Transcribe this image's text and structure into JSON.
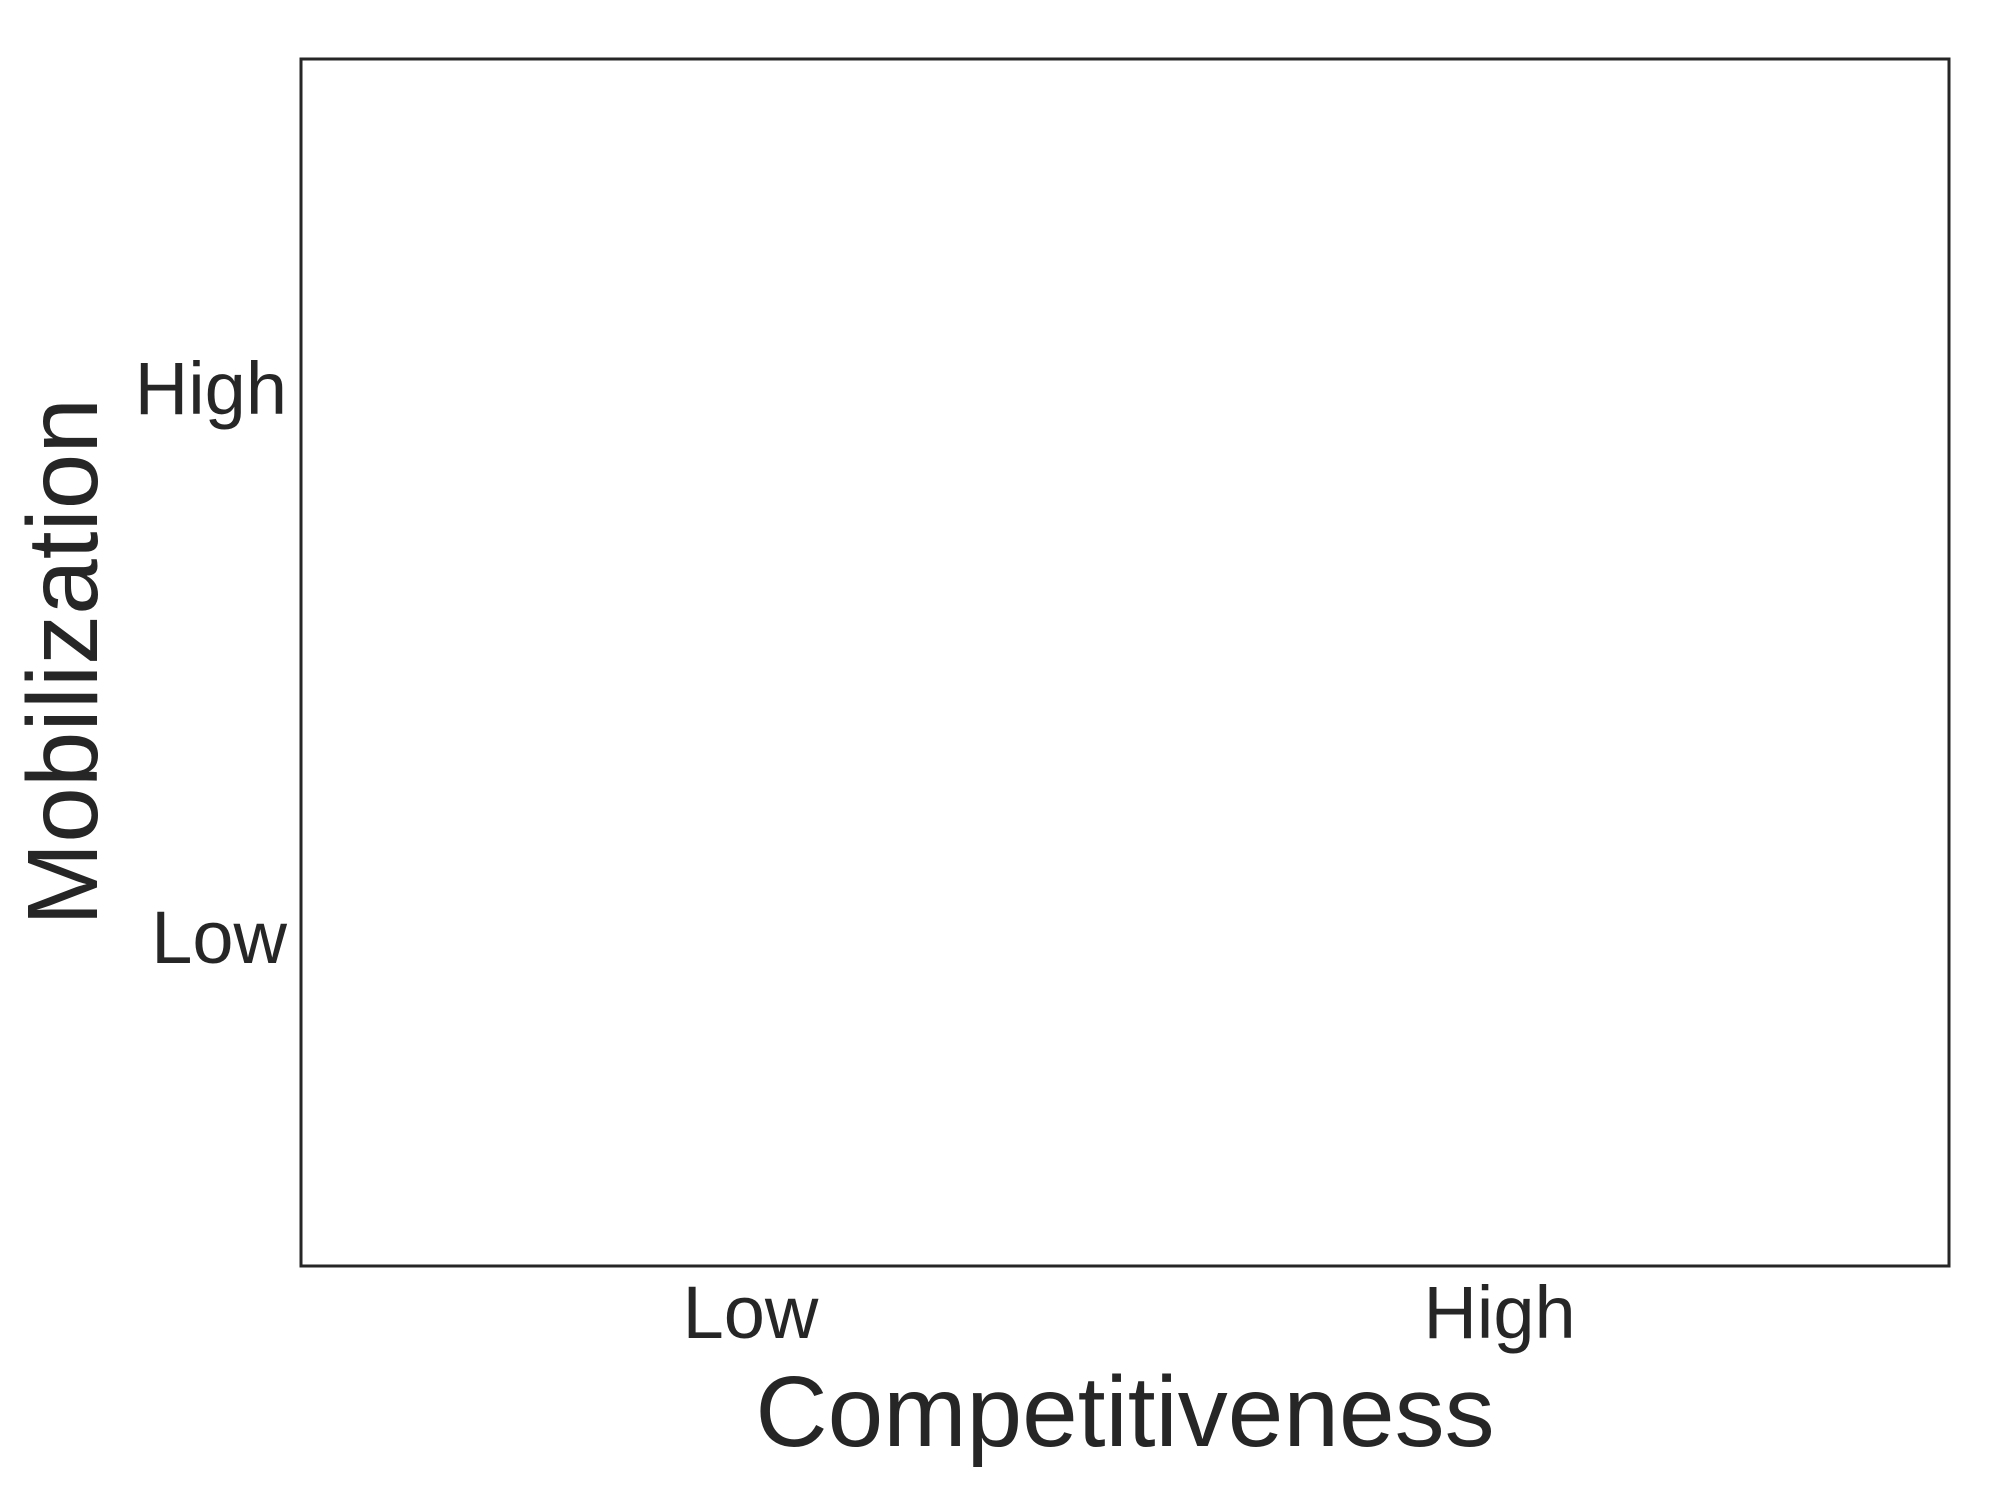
{
  "chart_data": {
    "type": "scatter",
    "title": "",
    "xlabel": "Competitiveness",
    "ylabel": "Mobilization",
    "x_categories": [
      "Low",
      "High"
    ],
    "y_categories": [
      "Low",
      "High"
    ],
    "xlim": [
      0.4,
      2.6
    ],
    "ylim": [
      0.4,
      2.6
    ],
    "points": [],
    "grid": false,
    "legend": "none",
    "colors": {
      "text": "#262626",
      "frame": "#262626",
      "background": "#ffffff"
    }
  }
}
